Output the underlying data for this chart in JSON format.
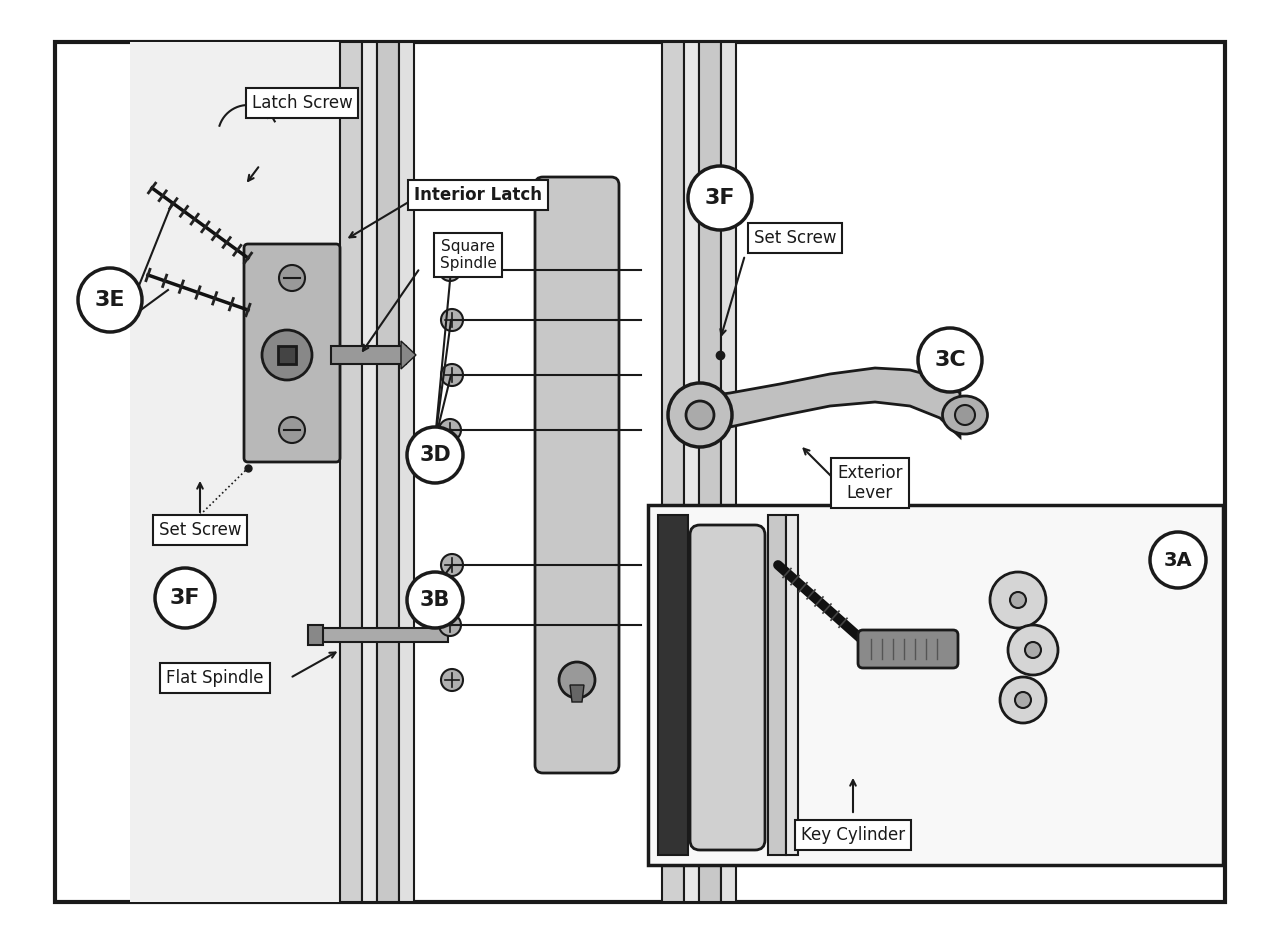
{
  "bg_color": "#ffffff",
  "line_color": "#1a1a1a",
  "label_bg": "#ffffff",
  "parts_gray": "#c0c0c0",
  "parts_dark": "#888888",
  "parts_light": "#d8d8d8",
  "door_gray": "#e0e0e0",
  "door_dark": "#b0b0b0",
  "inset_bg": "#f0f0f0",
  "labels": {
    "latch_screw": "Latch Screw",
    "interior_latch": "Interior Latch",
    "square_spindle": "Square\nSpindle",
    "set_screw_left": "Set Screw",
    "set_screw_right": "Set Screw",
    "flat_spindle": "Flat Spindle",
    "exterior_lever": "Exterior\nLever",
    "key_cylinder": "Key Cylinder",
    "3A": "3A",
    "3B": "3B",
    "3C": "3C",
    "3D": "3D",
    "3E": "3E",
    "3F_left": "3F",
    "3F_right": "3F"
  }
}
